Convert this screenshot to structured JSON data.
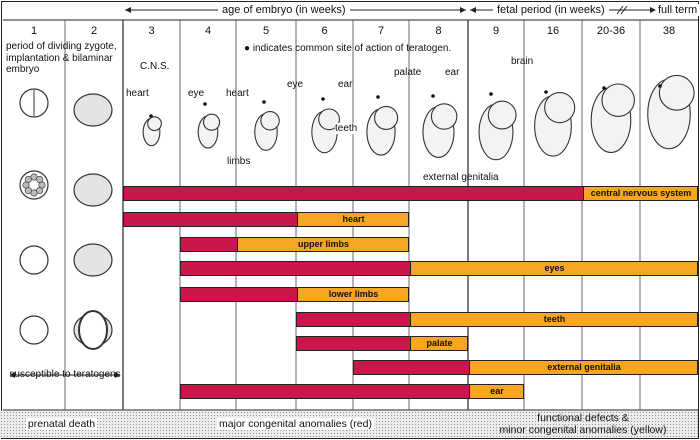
{
  "header": {
    "age_label": "age of embryo (in weeks)",
    "fetal_label": "fetal period (in weeks)",
    "full_term": "full term"
  },
  "weeks": [
    "1",
    "2",
    "3",
    "4",
    "5",
    "6",
    "7",
    "8",
    "9",
    "16",
    "20-36",
    "38"
  ],
  "intro_text": "period of dividing zygote, implantation & bilaminar embryo",
  "note": "indicates common site of action of teratogen.",
  "susceptible": "susceptible to teratogens",
  "anatomy_labels": {
    "cns": "C.N.S.",
    "heart_w3": "heart",
    "eye_w4": "eye",
    "heart_w5": "heart",
    "limbs": "limbs",
    "eye_w6": "eye",
    "ear_w7": "ear",
    "teeth": "teeth",
    "palate": "palate",
    "ear_w8": "ear",
    "external_genitalia": "external genitalia",
    "brain": "brain"
  },
  "colors": {
    "red": "#c8174b",
    "yellow": "#f5a623"
  },
  "chart_data": {
    "type": "gantt",
    "unit": "weeks",
    "rows": [
      {
        "label": "central nervous system",
        "red": [
          3,
          20
        ],
        "yellow": [
          20,
          38
        ]
      },
      {
        "label": "heart",
        "red": [
          3,
          6
        ],
        "yellow": [
          6,
          8
        ]
      },
      {
        "label": "upper limbs",
        "red": [
          4,
          5
        ],
        "yellow": [
          5,
          8
        ]
      },
      {
        "label": "eyes",
        "red": [
          4,
          8
        ],
        "yellow": [
          8,
          38
        ]
      },
      {
        "label": "lower limbs",
        "red": [
          4,
          6
        ],
        "yellow": [
          6,
          8
        ]
      },
      {
        "label": "teeth",
        "red": [
          6,
          8
        ],
        "yellow": [
          8,
          38
        ]
      },
      {
        "label": "palate",
        "red": [
          6,
          8
        ],
        "yellow": [
          8,
          9
        ]
      },
      {
        "label": "external genitalia",
        "red": [
          7,
          9
        ],
        "yellow": [
          9,
          38
        ]
      },
      {
        "label": "ear",
        "red": [
          4,
          9
        ],
        "yellow": [
          9,
          16
        ]
      }
    ]
  },
  "bottom": {
    "prenatal_death": "prenatal death",
    "major": "major congenital anomalies (red)",
    "functional_1": "functional defects &",
    "functional_2": "minor congenital anomalies (yellow)"
  }
}
